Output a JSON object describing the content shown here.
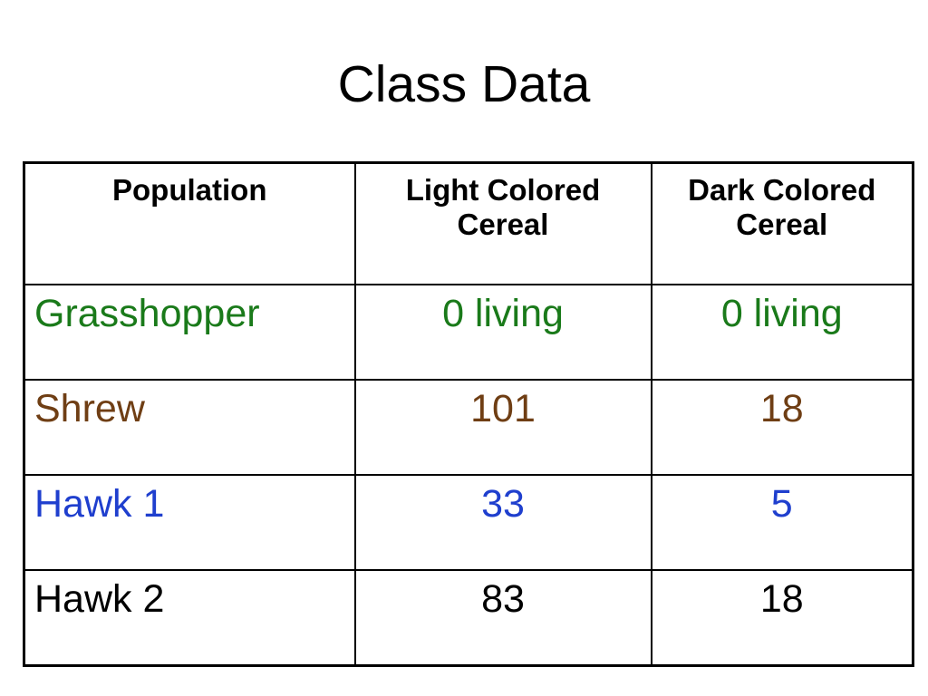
{
  "slide": {
    "title": "Class Data"
  },
  "table": {
    "headers": [
      "Population",
      "Light Colored Cereal",
      "Dark Colored Cereal"
    ],
    "rows": [
      {
        "population": "Grasshopper",
        "light": "0 living",
        "dark": "0 living",
        "color": "#1a7a1a"
      },
      {
        "population": "Shrew",
        "light": "101",
        "dark": "18",
        "color": "#6f3e14"
      },
      {
        "population": "Hawk 1",
        "light": "33",
        "dark": "5",
        "color": "#1f3fce"
      },
      {
        "population": "Hawk 2",
        "light": "83",
        "dark": "18",
        "color": "#000000"
      }
    ]
  },
  "colors": {
    "background": "#ffffff",
    "border": "#000000",
    "title_text": "#000000",
    "header_text": "#000000"
  }
}
